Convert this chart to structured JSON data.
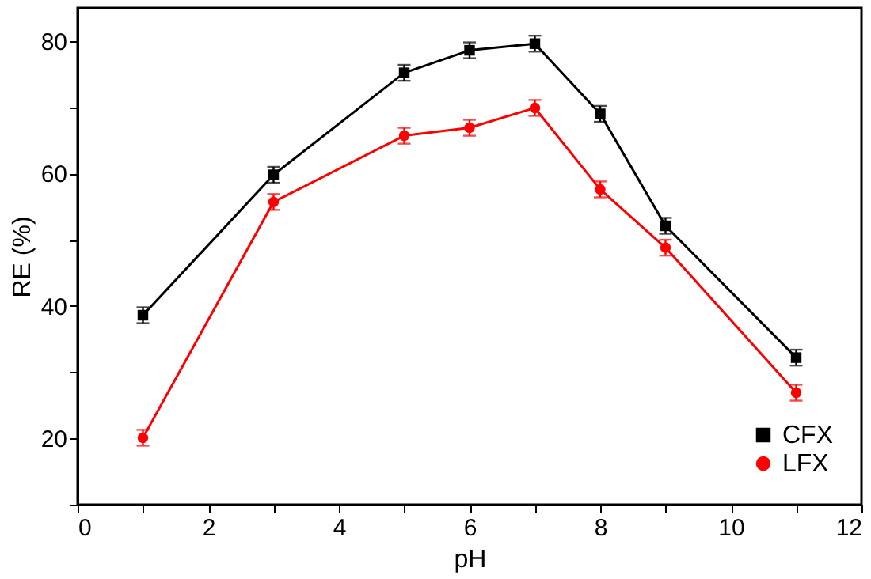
{
  "chart_data": {
    "type": "line",
    "xlabel": "pH",
    "ylabel": "RE (%)",
    "x": [
      1,
      3,
      5,
      6,
      7,
      8,
      9,
      11
    ],
    "series": [
      {
        "name": "CFX",
        "color": "#000000",
        "marker": "square",
        "values": [
          38.6,
          59.8,
          75.2,
          78.6,
          79.6,
          69.0,
          52.1,
          32.2
        ],
        "errors": [
          1.2,
          1.2,
          1.2,
          1.2,
          1.2,
          1.2,
          1.2,
          1.2
        ]
      },
      {
        "name": "LFX",
        "color": "#ff0000",
        "marker": "circle",
        "values": [
          20.1,
          55.7,
          65.7,
          66.9,
          69.9,
          57.6,
          48.8,
          26.9
        ],
        "errors": [
          1.2,
          1.2,
          1.2,
          1.2,
          1.2,
          1.2,
          1.2,
          1.2
        ]
      }
    ],
    "xlim": [
      0,
      12
    ],
    "xticks": [
      0,
      {
        "value": 1,
        "label": null
      },
      2,
      {
        "value": 3,
        "label": null
      },
      4,
      {
        "value": 5,
        "label": null
      },
      6,
      {
        "value": 7,
        "label": null
      },
      8,
      {
        "value": 9,
        "label": null
      },
      10,
      {
        "value": 11,
        "label": null
      },
      12
    ],
    "ylim": [
      10,
      85
    ],
    "yticks": [
      {
        "value": 10,
        "label": null
      },
      20,
      {
        "value": 30,
        "label": null
      },
      40,
      {
        "value": 50,
        "label": null
      },
      60,
      {
        "value": 70,
        "label": null
      },
      80
    ],
    "grid": false,
    "legend": "bottom right",
    "line_style": "solid"
  }
}
